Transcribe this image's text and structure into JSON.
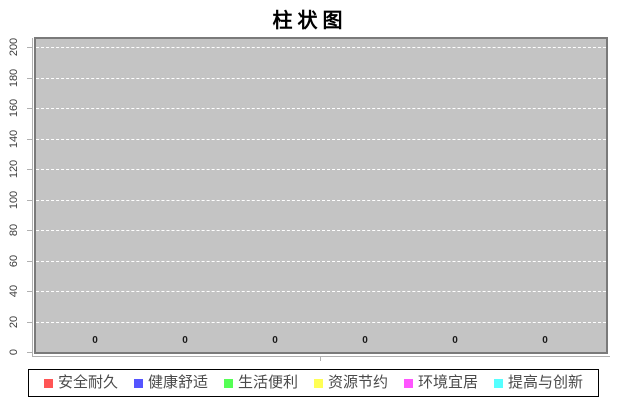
{
  "title": "柱状图",
  "y_axis": {
    "ticks": [
      0,
      20,
      40,
      60,
      80,
      100,
      120,
      140,
      160,
      180,
      200
    ]
  },
  "value_labels": [
    "0",
    "0",
    "0",
    "0",
    "0",
    "0"
  ],
  "legend": {
    "items": [
      {
        "label": "安全耐久",
        "color": "#FF5555"
      },
      {
        "label": "健康舒适",
        "color": "#5555FF"
      },
      {
        "label": "生活便利",
        "color": "#55FF55"
      },
      {
        "label": "资源节约",
        "color": "#FFFF55"
      },
      {
        "label": "环境宜居",
        "color": "#FF55FF"
      },
      {
        "label": "提高与创新",
        "color": "#55FFFF"
      }
    ]
  },
  "colors": {
    "plot_background": "#c4c4c4",
    "plot_border": "#7a7a7a",
    "gridline": "#ffffff",
    "axis_line": "#b0b0b0",
    "legend_border": "#000000",
    "title_text": "#000000",
    "tick_text": "#3d3d3d",
    "value_text": "#1a1a1a",
    "legend_text": "#4a4a4a"
  },
  "chart_data": {
    "type": "bar",
    "title": "柱状图",
    "categories": [
      ""
    ],
    "series": [
      {
        "name": "安全耐久",
        "values": [
          0
        ]
      },
      {
        "name": "健康舒适",
        "values": [
          0
        ]
      },
      {
        "name": "生活便利",
        "values": [
          0
        ]
      },
      {
        "name": "资源节约",
        "values": [
          0
        ]
      },
      {
        "name": "环境宜居",
        "values": [
          0
        ]
      },
      {
        "name": "提高与创新",
        "values": [
          0
        ]
      }
    ],
    "xlabel": "",
    "ylabel": "",
    "ylim": [
      0,
      200
    ],
    "y_tick_interval": 20,
    "grid": true,
    "gridline_style": "dashed-white",
    "plot_background": "gray",
    "bar_value_labels_shown": true,
    "legend_position": "bottom"
  }
}
